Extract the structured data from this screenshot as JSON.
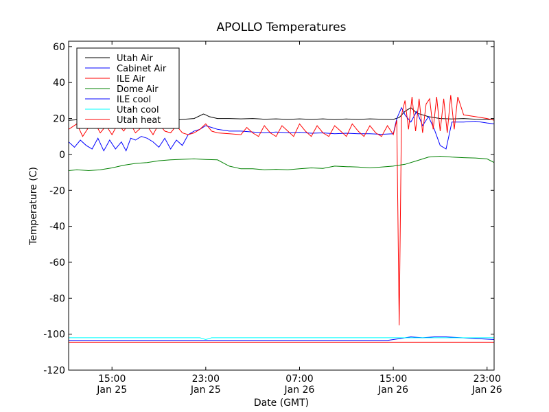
{
  "chart_data": {
    "type": "line",
    "title": "APOLLO Temperatures",
    "xlabel": "Date (GMT)",
    "ylabel": "Temperature (C)",
    "x_unit": "hours since Jan 25 00:00 GMT",
    "xlim": [
      11.3,
      47.6
    ],
    "ylim": [
      -120,
      63
    ],
    "yticks": [
      60,
      40,
      20,
      0,
      -20,
      -40,
      -60,
      -80,
      -100,
      -120
    ],
    "xticks": [
      {
        "x": 15,
        "time": "15:00",
        "date": "Jan 25"
      },
      {
        "x": 23,
        "time": "23:00",
        "date": "Jan 25"
      },
      {
        "x": 31,
        "time": "07:00",
        "date": "Jan 26"
      },
      {
        "x": 39,
        "time": "15:00",
        "date": "Jan 26"
      },
      {
        "x": 47,
        "time": "23:00",
        "date": "Jan 26"
      }
    ],
    "legend": {
      "placement": "top-left"
    },
    "series": [
      {
        "name": "Utah Air",
        "color": "#000000",
        "x": [
          11.3,
          12,
          13,
          14,
          15,
          16,
          17,
          18,
          19,
          20,
          21,
          22,
          22.8,
          23,
          23.3,
          24,
          25,
          26,
          27,
          28,
          29,
          30,
          31,
          32,
          33,
          34,
          35,
          36,
          37,
          38,
          39,
          39.5,
          40,
          40.5,
          41,
          42,
          43,
          44,
          45,
          46,
          47,
          47.6
        ],
        "y": [
          19,
          19.3,
          19,
          19.5,
          19,
          19.3,
          19,
          18.7,
          18.5,
          18.8,
          19.5,
          20,
          22.5,
          22,
          21,
          20,
          20,
          19.8,
          20,
          19.6,
          19.8,
          19.5,
          19.8,
          19.5,
          19.8,
          19.4,
          19.7,
          19.5,
          19.8,
          19.6,
          19.5,
          20.5,
          24,
          26,
          23,
          21,
          20,
          19.7,
          20,
          19.6,
          19.5,
          19.3
        ]
      },
      {
        "name": "Cabinet Air",
        "color": "#0000ff",
        "x": [
          11.3,
          11.8,
          12.3,
          12.8,
          13.3,
          13.8,
          14.3,
          14.8,
          15.3,
          15.8,
          16.2,
          16.6,
          17,
          17.5,
          18,
          18.5,
          19,
          19.5,
          20,
          20.5,
          21,
          21.5,
          22,
          22.5,
          23,
          23.5,
          24,
          25,
          26,
          27,
          28,
          29,
          30,
          31,
          32,
          33,
          34,
          35,
          36,
          37,
          38,
          39,
          39.3,
          39.7,
          40,
          40.5,
          41,
          41.5,
          42,
          42.5,
          43,
          43.5,
          44,
          45,
          46,
          47,
          47.6
        ],
        "y": [
          7,
          4,
          8,
          5,
          3,
          9,
          2,
          8,
          3,
          7,
          2,
          9,
          8,
          10,
          9,
          7,
          4,
          9,
          3,
          8,
          5,
          11,
          13,
          14,
          16,
          15,
          14,
          13,
          13,
          12.5,
          12,
          12.5,
          12,
          12.3,
          11.8,
          12,
          11.5,
          11.8,
          11.5,
          11.5,
          11.2,
          11.5,
          20,
          26,
          22,
          18,
          24,
          16,
          21,
          14,
          5,
          3,
          18,
          18,
          18.5,
          17.5,
          17
        ]
      },
      {
        "name": "ILE Air",
        "color": "#ff0000",
        "x": [
          11.3,
          12,
          12.5,
          13,
          13.5,
          14,
          14.5,
          15,
          15.5,
          16,
          16.5,
          17,
          17.5,
          18,
          18.5,
          19,
          19.5,
          20,
          20.5,
          21,
          21.5,
          22,
          22.5,
          23,
          23.5,
          24,
          25,
          26,
          26.5,
          27,
          27.5,
          28,
          28.5,
          29,
          29.5,
          30,
          30.5,
          31,
          31.5,
          32,
          32.5,
          33,
          33.5,
          34,
          34.5,
          35,
          35.5,
          36,
          36.5,
          37,
          37.5,
          38,
          38.5,
          39,
          39.3,
          39.5,
          39.7,
          40,
          40.3,
          40.6,
          40.9,
          41.2,
          41.5,
          41.8,
          42.1,
          42.4,
          42.7,
          43,
          43.3,
          43.6,
          43.9,
          44.2,
          44.5,
          45,
          46,
          47,
          47.6
        ],
        "y": [
          14,
          17,
          10,
          15,
          18,
          12,
          16,
          11,
          17,
          13,
          18,
          12,
          15,
          16,
          11,
          17,
          13,
          12,
          16,
          12,
          11,
          12,
          14,
          17,
          13,
          12,
          11.5,
          11,
          15,
          12,
          10,
          16,
          12,
          10,
          16,
          13,
          10,
          17,
          13,
          10,
          16,
          12,
          10,
          16,
          13,
          10,
          17,
          13,
          10,
          16,
          12,
          10,
          16,
          11,
          19,
          -95,
          22,
          30,
          14,
          32,
          13,
          31,
          12,
          28,
          31,
          14,
          32,
          13,
          31,
          12,
          33,
          14,
          32,
          22,
          21,
          20,
          19
        ]
      },
      {
        "name": "Dome Air",
        "color": "#008000",
        "x": [
          11.3,
          12,
          13,
          14,
          15,
          16,
          17,
          18,
          19,
          20,
          21,
          22,
          23,
          24,
          25,
          26,
          27,
          28,
          29,
          30,
          31,
          32,
          33,
          34,
          35,
          36,
          37,
          38,
          39,
          40,
          41,
          42,
          43,
          44,
          45,
          46,
          47,
          47.6
        ],
        "y": [
          -9,
          -8.5,
          -9,
          -8.5,
          -7.5,
          -6,
          -5,
          -4.5,
          -3.5,
          -3,
          -2.7,
          -2.5,
          -2.8,
          -3,
          -6.5,
          -8,
          -8,
          -8.5,
          -8.3,
          -8.5,
          -8,
          -7.5,
          -7.8,
          -6.5,
          -6.8,
          -7,
          -7.5,
          -7,
          -6.5,
          -5.5,
          -3.5,
          -1.5,
          -1,
          -1.5,
          -1.8,
          -2,
          -2.5,
          -4.5
        ]
      },
      {
        "name": "ILE cool",
        "color": "#0000ff",
        "x": [
          11.3,
          38.5,
          39.5,
          40.5,
          41.5,
          42.5,
          43.5,
          47.6
        ],
        "y": [
          -103.5,
          -103.5,
          -102.5,
          -101.5,
          -102,
          -101.5,
          -101.5,
          -103
        ]
      },
      {
        "name": "Utah cool",
        "color": "#00ffff",
        "x": [
          11.3,
          22.5,
          23,
          23.5,
          47.6
        ],
        "y": [
          -102,
          -102,
          -103,
          -102,
          -102
        ]
      },
      {
        "name": "Utah heat",
        "color": "#ff0000",
        "x": [
          11.3,
          47.6
        ],
        "y": [
          -104.5,
          -104.5
        ]
      }
    ]
  }
}
